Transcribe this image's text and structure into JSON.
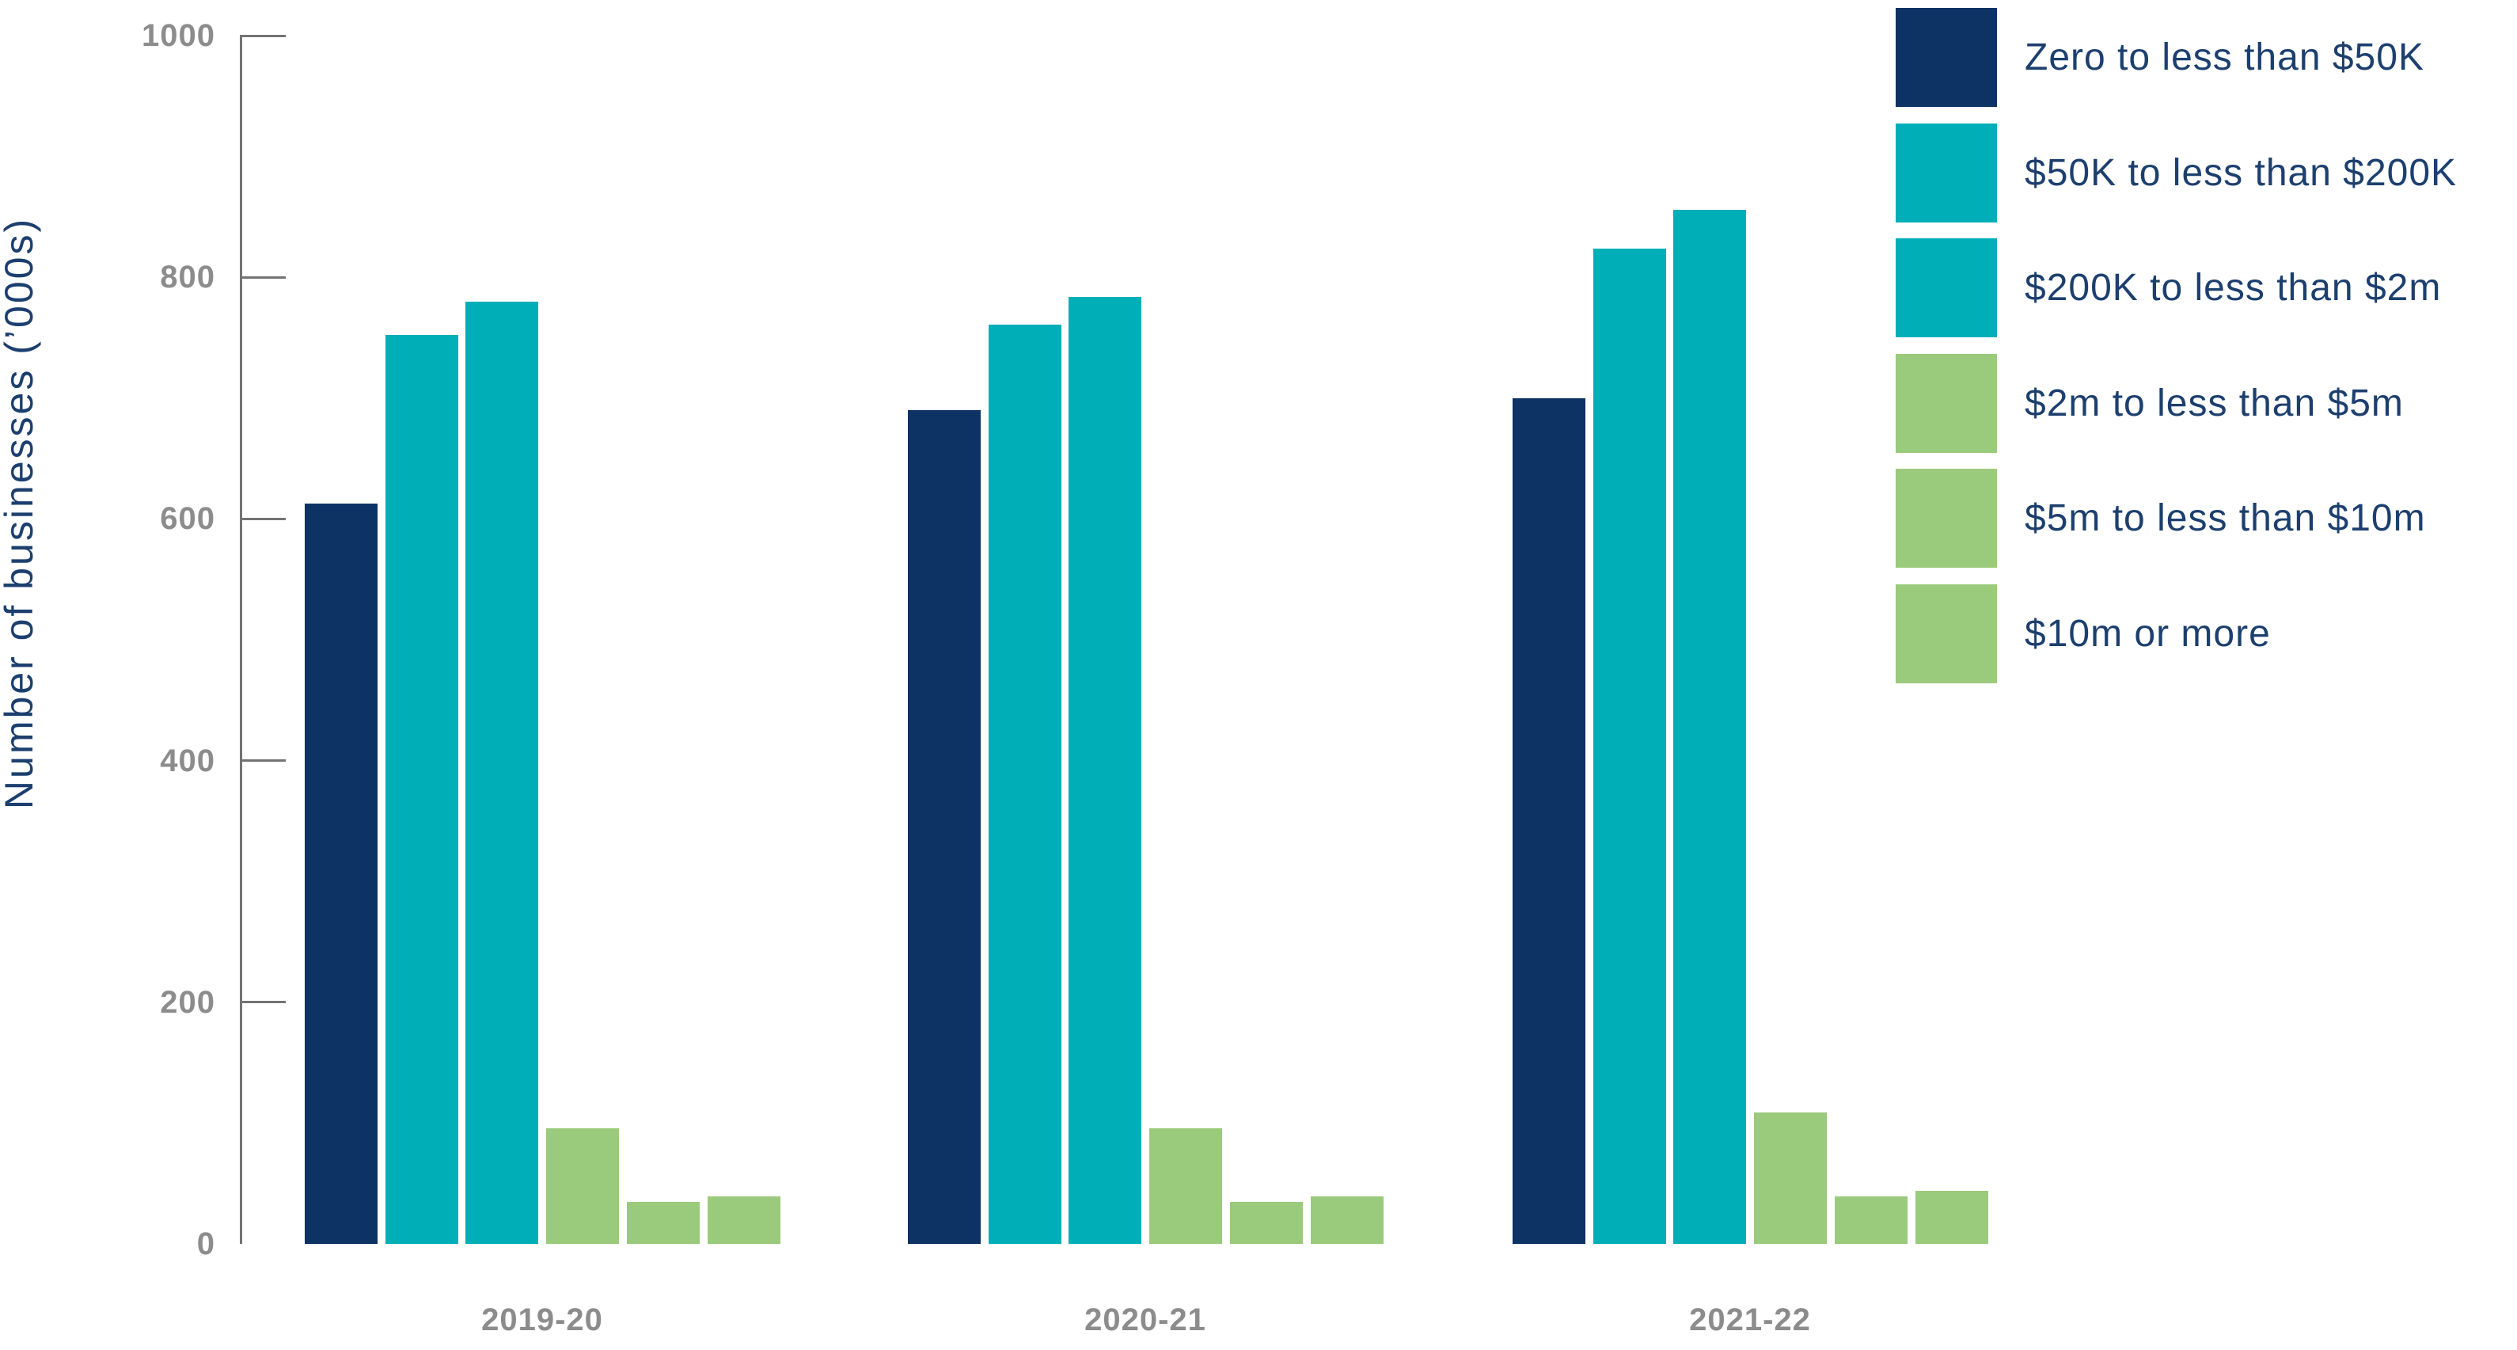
{
  "chart_data": {
    "type": "bar",
    "title": "",
    "ylabel": "Number of businesses (’000s)",
    "xlabel": "",
    "categories": [
      "2019-20",
      "2020-21",
      "2021-22"
    ],
    "series": [
      {
        "name": "Zero to less than $50K",
        "color": "#0d3264",
        "values": [
          613,
          690,
          700
        ]
      },
      {
        "name": "$50K to less than $200K",
        "color": "#00aeb8",
        "values": [
          752,
          761,
          824
        ]
      },
      {
        "name": "$200K to less than $2m",
        "color": "#00aeb8",
        "values": [
          780,
          784,
          856
        ]
      },
      {
        "name": "$2m to less than $5m",
        "color": "#9aca7b",
        "values": [
          96,
          96,
          109
        ]
      },
      {
        "name": "$5m to less than $10m",
        "color": "#9aca7b",
        "values": [
          35,
          35,
          39
        ]
      },
      {
        "name": "$10m or more",
        "color": "#9aca7b",
        "values": [
          39,
          39,
          44
        ]
      }
    ],
    "ylim": [
      0,
      1000
    ],
    "yticks": [
      0,
      200,
      400,
      600,
      800,
      1000
    ],
    "grid": false,
    "legend_position": "top-right",
    "colors": {
      "axis": "#737373",
      "tick_text": "#8c8c8c",
      "label_text": "#1c3f6e",
      "background": "#ffffff"
    }
  }
}
